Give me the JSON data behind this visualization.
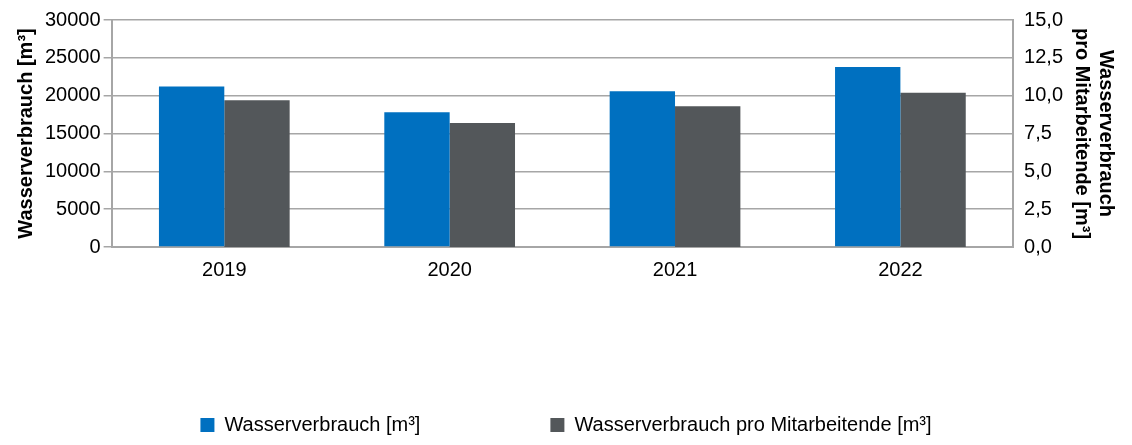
{
  "chart_data": {
    "type": "bar",
    "categories": [
      "2019",
      "2020",
      "2021",
      "2022"
    ],
    "ylabel": "Wasserverbrauch [m³]",
    "y2label": "Wasserverbrauch\npro Mitarbeitende [m³]",
    "series": [
      {
        "name": "Wasserverbrauch [m³]",
        "color": "#0070c0",
        "values": [
          21200,
          17800,
          20600,
          23800
        ]
      },
      {
        "name": "Wasserverbrauch pro Mitarbeitende [m³]",
        "color": "#53575a",
        "values": [
          9.7,
          8.2,
          9.3,
          10.2
        ],
        "axis": "y2"
      }
    ],
    "ylim": [
      0,
      30000
    ],
    "yticks": [
      0,
      5000,
      10000,
      15000,
      20000,
      25000,
      30000
    ],
    "y2lim": [
      0,
      15
    ],
    "y2ticks": [
      {
        "value": 0,
        "label": "0,0"
      },
      {
        "value": 2.5,
        "label": "2,5"
      },
      {
        "value": 5,
        "label": "5,0"
      },
      {
        "value": 7.5,
        "label": "7,5"
      },
      {
        "value": 10,
        "label": "10,0"
      },
      {
        "value": 12.5,
        "label": "12,5"
      },
      {
        "value": 15,
        "label": "15,0"
      }
    ],
    "grid": "y",
    "legend": "bottom"
  }
}
